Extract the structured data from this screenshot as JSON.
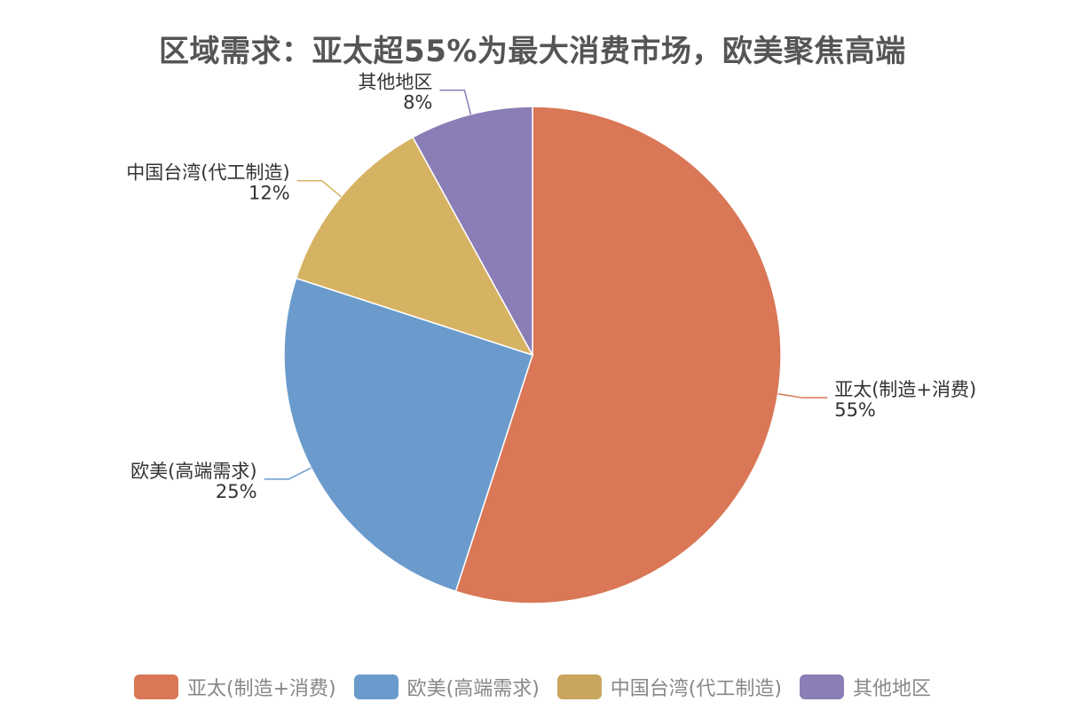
{
  "chart_data": {
    "type": "pie",
    "title": "区域需求：亚太超55%为最大消费市场，欧美聚焦高端",
    "slices": [
      {
        "label": "亚太(制造+消费)",
        "value": 55,
        "display": "55%",
        "color": "#d97756",
        "legend_color": "#d97756"
      },
      {
        "label": "欧美(高端需求)",
        "value": 25,
        "display": "25%",
        "color": "#6a9bcc",
        "legend_color": "#6a9bcc"
      },
      {
        "label": "中国台湾(代工制造)",
        "value": 12,
        "display": "12%",
        "color": "#d6b263",
        "legend_color": "#c9a55e"
      },
      {
        "label": "其他地区",
        "value": 8,
        "display": "8%",
        "color": "#8b7db5",
        "legend_color": "#8b7db5"
      }
    ],
    "legend_position": "bottom",
    "start_angle": "top",
    "direction": "clockwise"
  }
}
